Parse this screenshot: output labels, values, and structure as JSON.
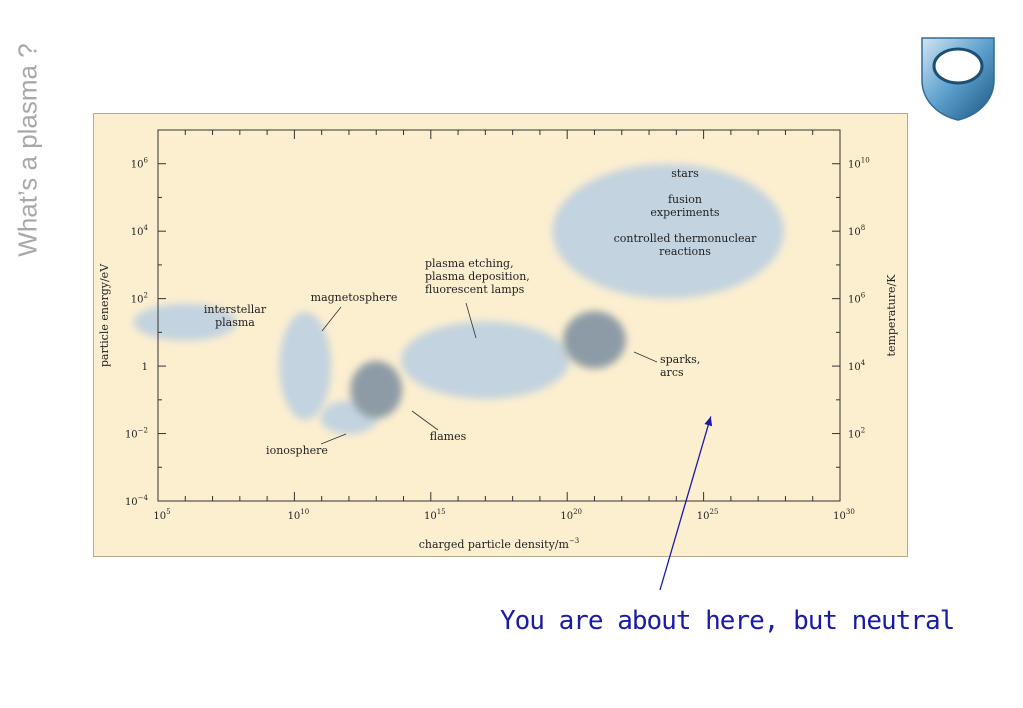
{
  "slide": {
    "title": "What’s a plasma ?",
    "caption": "You are about here, but neutral"
  },
  "colors": {
    "panel_bg": "#fcefd0",
    "region_light": "#c3d3df",
    "region_dark": "#8d9ba6",
    "axis": "#333333",
    "caption": "#1a1aa8",
    "title": "#a8a8a8",
    "logo": "#2f6c96"
  },
  "logo": {
    "icon": "university-shield-logo"
  },
  "chart_data": {
    "type": "scatter",
    "xlabel": "charged particle density/m",
    "xlabel_sup": "−3",
    "ylabel_left": "particle energy/eV",
    "ylabel_right": "temperature/K",
    "x_scale": "log",
    "y_scale": "log",
    "xlim": [
      100000,
      1e+30
    ],
    "ylim": [
      0.0001,
      10000000
    ],
    "x_ticks": [
      {
        "value": 100000,
        "base": "10",
        "exp": "5"
      },
      {
        "value": 10000000000.0,
        "base": "10",
        "exp": "10"
      },
      {
        "value": 1000000000000000.0,
        "base": "10",
        "exp": "15"
      },
      {
        "value": 1e+20,
        "base": "10",
        "exp": "20"
      },
      {
        "value": 1e+25,
        "base": "10",
        "exp": "25"
      },
      {
        "value": 1e+30,
        "base": "10",
        "exp": "30"
      }
    ],
    "y_ticks_left": [
      {
        "value": 1000000,
        "base": "10",
        "exp": "6"
      },
      {
        "value": 10000,
        "base": "10",
        "exp": "4"
      },
      {
        "value": 100,
        "base": "10",
        "exp": "2"
      },
      {
        "value": 1,
        "base": "1",
        "exp": ""
      },
      {
        "value": 0.01,
        "base": "10",
        "exp": "−2"
      },
      {
        "value": 0.0001,
        "base": "10",
        "exp": "−4"
      }
    ],
    "y_ticks_right": [
      {
        "value": 1000000,
        "base": "10",
        "exp": "10"
      },
      {
        "value": 10000,
        "base": "10",
        "exp": "8"
      },
      {
        "value": 100,
        "base": "10",
        "exp": "6"
      },
      {
        "value": 1,
        "base": "10",
        "exp": "4"
      },
      {
        "value": 0.01,
        "base": "10",
        "exp": "2"
      }
    ],
    "regions": [
      {
        "key": "interstellar",
        "label": [
          "interstellar",
          "plasma"
        ],
        "x_center": 1000000,
        "y_center": 20,
        "x_span_decades": 3.8,
        "y_span_decades": 1.1,
        "shade": "light"
      },
      {
        "key": "magnetosphere",
        "label": [
          "magnetosphere"
        ],
        "x_center": 25000000000.0,
        "y_center": 1,
        "x_span_decades": 1.9,
        "y_span_decades": 3.2,
        "shade": "light"
      },
      {
        "key": "ionosphere",
        "label": [
          "ionosphere"
        ],
        "x_center": 1000000000000.0,
        "y_center": 0.03,
        "x_span_decades": 2.1,
        "y_span_decades": 1.0,
        "shade": "light"
      },
      {
        "key": "flames",
        "label": [
          "flames"
        ],
        "x_center": 10000000000000.0,
        "y_center": 0.2,
        "x_span_decades": 1.9,
        "y_span_decades": 1.7,
        "shade": "dark"
      },
      {
        "key": "plasma_processing",
        "label": [
          "plasma etching,",
          "plasma deposition,",
          "fluorescent lamps"
        ],
        "x_center": 1e+17,
        "y_center": 1.5,
        "x_span_decades": 6.2,
        "y_span_decades": 2.3,
        "shade": "light"
      },
      {
        "key": "sparks",
        "label": [
          "sparks,",
          "arcs"
        ],
        "x_center": 1e+21,
        "y_center": 6,
        "x_span_decades": 2.3,
        "y_span_decades": 1.7,
        "shade": "dark"
      },
      {
        "key": "stars",
        "label": [
          "stars",
          "",
          "fusion",
          "experiments",
          "",
          "controlled thermonuclear",
          "reactions"
        ],
        "x_center": 5e+23,
        "y_center": 10000,
        "x_span_decades": 8.5,
        "y_span_decades": 4.0,
        "shade": "light"
      }
    ],
    "pointer": {
      "x": 2e+25,
      "y": 0.03
    }
  }
}
